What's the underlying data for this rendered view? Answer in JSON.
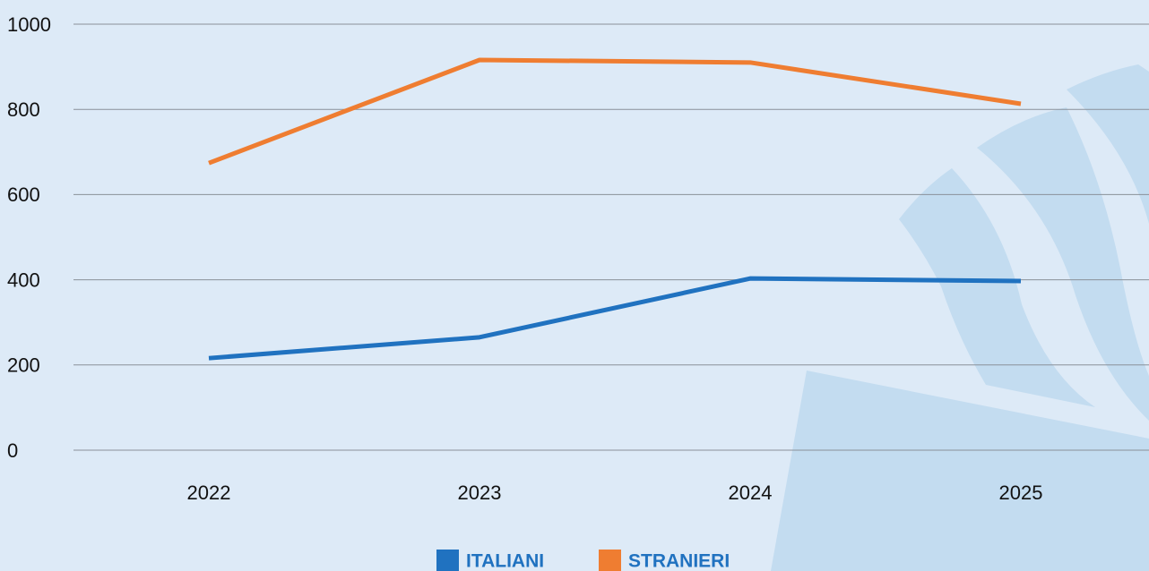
{
  "chart_data": {
    "type": "line",
    "categories": [
      "2022",
      "2023",
      "2024",
      "2025"
    ],
    "series": [
      {
        "name": "ITALIANI",
        "color": "#2072c0",
        "values": [
          216,
          265,
          403,
          397
        ]
      },
      {
        "name": "STRANIERI",
        "color": "#ef7d31",
        "values": [
          674,
          916,
          910,
          813
        ]
      }
    ],
    "ylim": [
      0,
      1000
    ],
    "yticks": [
      0,
      200,
      400,
      600,
      800,
      1000
    ],
    "grid": true
  }
}
